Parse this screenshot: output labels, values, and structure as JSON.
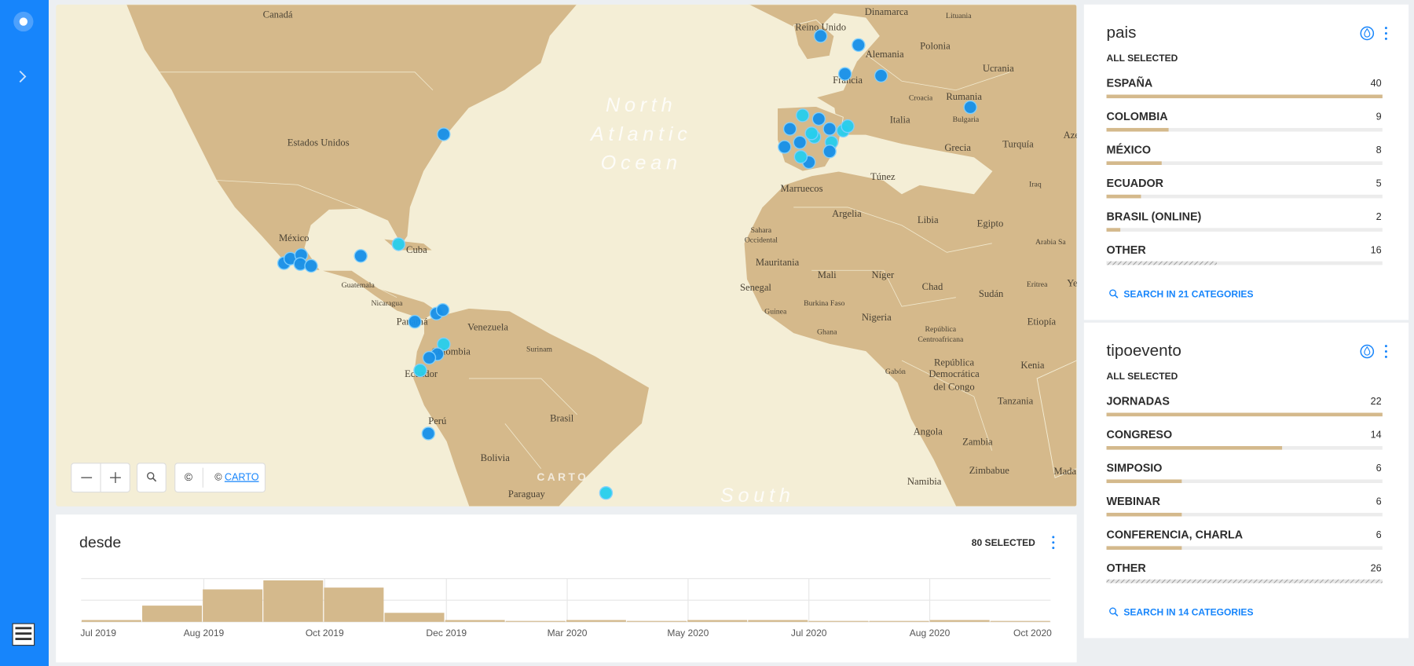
{
  "map": {
    "labels": [
      "Canadá",
      "Dinamarca",
      "Lituania",
      "Reino Unido",
      "Polonia",
      "Alemania",
      "Ucrania",
      "Francia",
      "Rumania",
      "Croacia",
      "Italia",
      "Bulgaria",
      "Grecia",
      "Turquía",
      "Estados Unidos",
      "Marruecos",
      "Túnez",
      "Iraq",
      "Argelia",
      "Libia",
      "Egipto",
      "Arabia Sa",
      "México",
      "Cuba",
      "Sahara",
      "Occidental",
      "Mauritania",
      "Mali",
      "Níger",
      "Chad",
      "Sudán",
      "Eritrea",
      "Senegal",
      "Guatemala",
      "Nicaragua",
      "Guinea",
      "Burkina Faso",
      "Nigeria",
      "Etiopía",
      "Panamá",
      "Venezuela",
      "Surinam",
      "Ghana",
      "República",
      "Centroafricana",
      "Colombia",
      "Ecuador",
      "Gabón",
      "República",
      "Democrática",
      "del Congo",
      "Kenia",
      "Tanzania",
      "Perú",
      "Brasil",
      "Angola",
      "Zambia",
      "Bolivia",
      "Zimbabue",
      "Namibia",
      "Paraguay",
      "Mada",
      "Aze",
      "Ye"
    ],
    "ocean": [
      "North",
      "Atlantic",
      "Ocean"
    ],
    "ocean_south": "South",
    "watermark": "CARTO",
    "info_button": "©",
    "attribution_prefix": "©",
    "attribution_link": "CARTO"
  },
  "widgets": [
    {
      "title": "pais",
      "status": "ALL SELECTED",
      "categories": [
        {
          "name": "ESPAÑA",
          "value": 40
        },
        {
          "name": "COLOMBIA",
          "value": 9
        },
        {
          "name": "MÉXICO",
          "value": 8
        },
        {
          "name": "ECUADOR",
          "value": 5
        },
        {
          "name": "BRASIL (ONLINE)",
          "value": 2
        },
        {
          "name": "OTHER",
          "value": 16
        }
      ],
      "search": "SEARCH IN 21 CATEGORIES"
    },
    {
      "title": "tipoevento",
      "status": "ALL SELECTED",
      "categories": [
        {
          "name": "JORNADAS",
          "value": 22
        },
        {
          "name": "CONGRESO",
          "value": 14
        },
        {
          "name": "SIMPOSIO",
          "value": 6
        },
        {
          "name": "WEBINAR",
          "value": 6
        },
        {
          "name": "CONFERENCIA, CHARLA",
          "value": 6
        },
        {
          "name": "OTHER",
          "value": 26
        }
      ],
      "search": "SEARCH IN 14 CATEGORIES"
    }
  ],
  "chart_data": {
    "type": "bar",
    "title": "desde",
    "selected": "80 SELECTED",
    "values": [
      1,
      9,
      18,
      23,
      19,
      5,
      1,
      0,
      1,
      0,
      1,
      1,
      0,
      0,
      1,
      0
    ],
    "color": "#d4b98c",
    "xticks": [
      "Jul 2019",
      "Aug 2019",
      "Oct 2019",
      "Dec 2019",
      "Mar 2020",
      "May 2020",
      "Jul 2020",
      "Aug 2020",
      "Oct 2020"
    ],
    "ylim": [
      0,
      24
    ],
    "yticks": [
      0,
      12,
      24
    ],
    "grid": true
  }
}
